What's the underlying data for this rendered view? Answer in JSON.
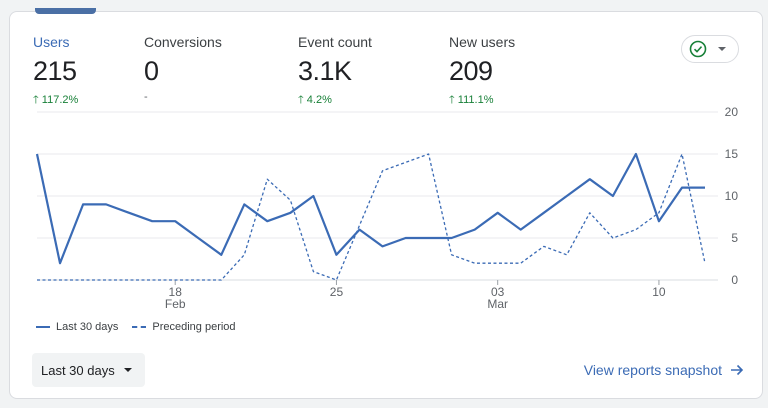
{
  "metrics": [
    {
      "label": "Users",
      "value": "215",
      "delta": "117.2%",
      "trend": "up",
      "active": true
    },
    {
      "label": "Conversions",
      "value": "0",
      "delta": "-",
      "trend": "none",
      "active": false
    },
    {
      "label": "Event count",
      "value": "3.1K",
      "delta": "4.2%",
      "trend": "up",
      "active": false
    },
    {
      "label": "New users",
      "value": "209",
      "delta": "111.1%",
      "trend": "up",
      "active": false
    }
  ],
  "compare_button": {
    "icon": "check-circle-icon",
    "dropdown_icon": "caret-down-icon"
  },
  "chart_data": {
    "type": "line",
    "x": [
      "Feb 12",
      "Feb 13",
      "Feb 14",
      "Feb 15",
      "Feb 16",
      "Feb 17",
      "Feb 18",
      "Feb 19",
      "Feb 20",
      "Feb 21",
      "Feb 22",
      "Feb 23",
      "Feb 24",
      "Feb 25",
      "Feb 26",
      "Feb 27",
      "Feb 28",
      "Feb 29",
      "Mar 01",
      "Mar 02",
      "Mar 03",
      "Mar 04",
      "Mar 05",
      "Mar 06",
      "Mar 07",
      "Mar 08",
      "Mar 09",
      "Mar 10",
      "Mar 11",
      "Mar 12"
    ],
    "x_ticks": [
      {
        "index": 6,
        "label": "18",
        "sublabel": "Feb"
      },
      {
        "index": 13,
        "label": "25",
        "sublabel": ""
      },
      {
        "index": 20,
        "label": "03",
        "sublabel": "Mar"
      },
      {
        "index": 27,
        "label": "10",
        "sublabel": ""
      }
    ],
    "y_ticks": [
      "0",
      "5",
      "10",
      "15",
      "20"
    ],
    "ylim": [
      0,
      20
    ],
    "y_axis_position": "right",
    "grid": true,
    "legend_position": "bottom-left",
    "series": [
      {
        "name": "Last 30 days",
        "style": "solid",
        "color": "#3b6bb5",
        "values": [
          15,
          2,
          9,
          9,
          8,
          7,
          7,
          5,
          3,
          9,
          7,
          8,
          10,
          3,
          6,
          4,
          5,
          5,
          5,
          6,
          8,
          6,
          8,
          10,
          12,
          10,
          15,
          7,
          11,
          11
        ]
      },
      {
        "name": "Preceding period",
        "style": "dashed",
        "color": "#3b6bb5",
        "values": [
          0,
          0,
          0,
          0,
          0,
          0,
          0,
          0,
          0,
          3,
          12,
          9.5,
          1,
          0,
          6.5,
          13,
          14,
          15,
          3,
          2,
          2,
          2,
          4,
          3,
          8,
          5,
          6,
          8,
          15,
          2
        ]
      }
    ]
  },
  "footer": {
    "range_label": "Last 30 days",
    "view_link": "View reports snapshot"
  }
}
